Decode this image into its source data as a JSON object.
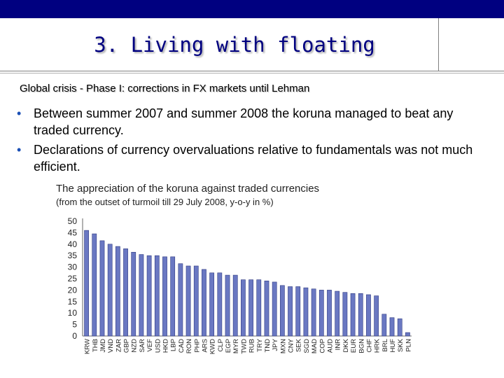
{
  "slide": {
    "title": "3. Living with floating",
    "subtitle": "Global crisis - Phase I: corrections in FX markets until Lehman",
    "bullets": [
      "Between summer 2007 and summer 2008 the koruna managed to beat any traded currency.",
      "Declarations of currency overvaluations relative to fundamentals was not much efficient."
    ]
  },
  "colors": {
    "accent_bar": "#000080",
    "title": "#000080",
    "bar_fill": "#6a78c2",
    "bar_edge": "#2f3a80"
  },
  "chart_data": {
    "type": "bar",
    "title": "The appreciation of the koruna against traded currencies",
    "subtitle": "(from the outset of turmoil till 29 July 2008, y-o-y in %)",
    "categories": [
      "KRW",
      "THB",
      "JMD",
      "VND",
      "ZAR",
      "GBP",
      "NZD",
      "SAR",
      "VEF",
      "USD",
      "HKD",
      "LBP",
      "CAD",
      "RON",
      "PHP",
      "ARS",
      "KWD",
      "CLP",
      "EGP",
      "MYR",
      "TWD",
      "RUB",
      "TRY",
      "TND",
      "JPY",
      "MXN",
      "CNY",
      "SEK",
      "SGD",
      "MAD",
      "COP",
      "AUD",
      "INR",
      "DKK",
      "EUR",
      "BGN",
      "CHF",
      "HRK",
      "BRL",
      "HUF",
      "SKK",
      "PLN"
    ],
    "values": [
      46,
      44.5,
      41.5,
      40,
      39,
      38,
      36.5,
      35.5,
      35,
      35,
      34.5,
      34.5,
      31.5,
      30.5,
      30.5,
      29,
      27.5,
      27.5,
      26.5,
      26.5,
      24.5,
      24.5,
      24.5,
      24,
      23.5,
      22,
      21.5,
      21.5,
      21,
      20.5,
      20,
      20,
      19.5,
      19,
      18.5,
      18.5,
      18,
      17.5,
      9.5,
      8,
      7.5,
      1.5
    ],
    "yticks": [
      0,
      5,
      10,
      15,
      20,
      25,
      30,
      35,
      40,
      45,
      50
    ],
    "ylim": [
      0,
      50
    ]
  }
}
